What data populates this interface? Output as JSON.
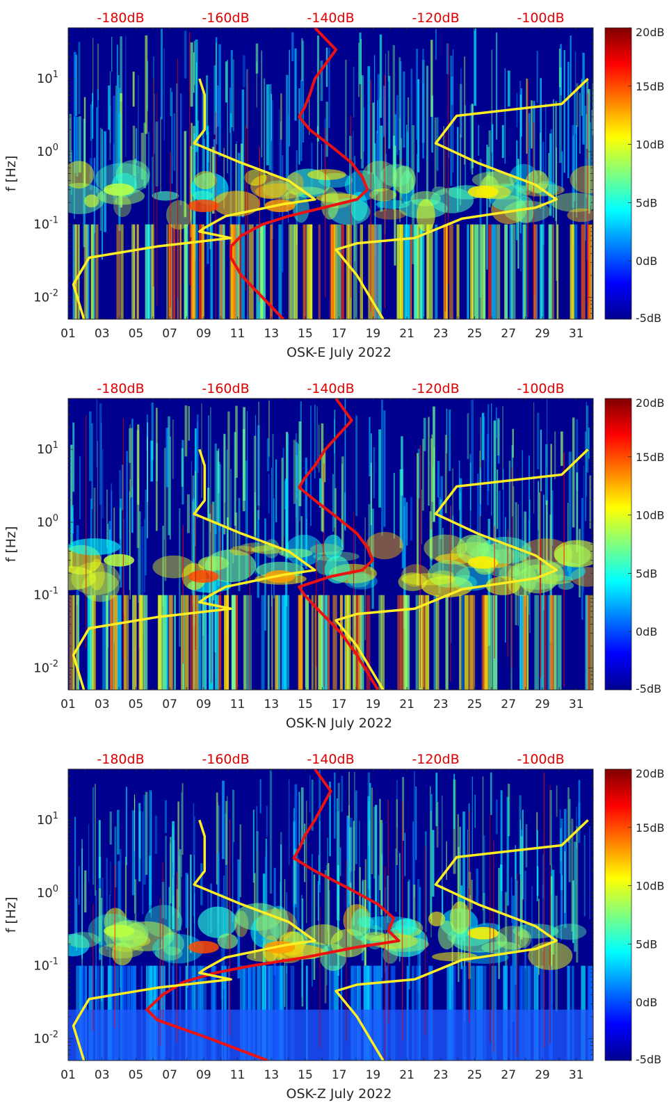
{
  "figure": {
    "ylabel": "f [Hz]",
    "y_ticks": [
      "10-2",
      "10-1",
      "100",
      "101"
    ],
    "y_tick_values": [
      0.01,
      0.1,
      1,
      10
    ],
    "x_ticks": [
      "01",
      "03",
      "05",
      "07",
      "09",
      "11",
      "13",
      "15",
      "17",
      "19",
      "21",
      "23",
      "25",
      "27",
      "29",
      "31"
    ],
    "top_ticks": [
      "-180dB",
      "-160dB",
      "-140dB",
      "-120dB",
      "-100dB"
    ],
    "colorbar_ticks": [
      "20dB",
      "15dB",
      "10dB",
      "5dB",
      "0dB",
      "-5dB"
    ],
    "colorbar_values": [
      20,
      15,
      10,
      5,
      0,
      -5
    ],
    "colors": {
      "red_curve": "#ee1111",
      "yellow_curve": "#ffee22",
      "top_labels": "#dd0000",
      "background_low": "#00008f"
    }
  },
  "chart_data": [
    {
      "type": "heatmap",
      "title": "",
      "xlabel": "OSK-E July 2022",
      "ylabel": "f [Hz]",
      "xlim_day": [
        1,
        32
      ],
      "ylim_hz": [
        0.005,
        50
      ],
      "yscale": "log",
      "clim_db": [
        -5,
        20
      ],
      "colormap": "jet",
      "top_axis": {
        "label_unit": "dB",
        "range_db": [
          -190,
          -90
        ],
        "ticks": [
          -180,
          -160,
          -140,
          -120,
          -100
        ]
      },
      "series": [
        {
          "name": "red curve (top dB axis)",
          "points": [
            [
              -143,
              50
            ],
            [
              -139,
              25
            ],
            [
              -143,
              10
            ],
            [
              -144,
              6
            ],
            [
              -145,
              4
            ],
            [
              -146,
              3
            ],
            [
              -144,
              2
            ],
            [
              -140,
              1.2
            ],
            [
              -136,
              0.7
            ],
            [
              -134,
              0.45
            ],
            [
              -133,
              0.3
            ],
            [
              -135,
              0.22
            ],
            [
              -140,
              0.18
            ],
            [
              -148,
              0.13
            ],
            [
              -153,
              0.1
            ],
            [
              -157,
              0.07
            ],
            [
              -159,
              0.05
            ],
            [
              -159,
              0.035
            ],
            [
              -157,
              0.02
            ],
            [
              -153,
              0.01
            ],
            [
              -149,
              0.005
            ]
          ]
        },
        {
          "name": "yellow curve left (top dB axis)",
          "points": [
            [
              -165,
              10
            ],
            [
              -164,
              6
            ],
            [
              -164,
              2
            ],
            [
              -166,
              1.3
            ],
            [
              -157,
              0.7
            ],
            [
              -148,
              0.4
            ],
            [
              -143,
              0.22
            ],
            [
              -149,
              0.19
            ],
            [
              -160,
              0.13
            ],
            [
              -164,
              0.09
            ],
            [
              -165,
              0.08
            ],
            [
              -159,
              0.065
            ],
            [
              -173,
              0.05
            ],
            [
              -186,
              0.035
            ],
            [
              -188,
              0.02
            ],
            [
              -189,
              0.015
            ],
            [
              -187,
              0.005
            ]
          ]
        },
        {
          "name": "yellow curve right (top dB axis)",
          "points": [
            [
              -91,
              10
            ],
            [
              -96,
              4.5
            ],
            [
              -116,
              3.1
            ],
            [
              -120,
              1.3
            ],
            [
              -112,
              0.7
            ],
            [
              -101,
              0.35
            ],
            [
              -97,
              0.22
            ],
            [
              -101,
              0.17
            ],
            [
              -115,
              0.12
            ],
            [
              -124,
              0.065
            ],
            [
              -135,
              0.055
            ],
            [
              -139,
              0.045
            ],
            [
              -135,
              0.02
            ],
            [
              -130,
              0.005
            ]
          ]
        }
      ]
    },
    {
      "type": "heatmap",
      "title": "",
      "xlabel": "OSK-N July 2022",
      "ylabel": "f [Hz]",
      "xlim_day": [
        1,
        32
      ],
      "ylim_hz": [
        0.005,
        50
      ],
      "yscale": "log",
      "clim_db": [
        -5,
        20
      ],
      "colormap": "jet",
      "top_axis": {
        "label_unit": "dB",
        "range_db": [
          -190,
          -90
        ],
        "ticks": [
          -180,
          -160,
          -140,
          -120,
          -100
        ]
      },
      "series": [
        {
          "name": "red curve (top dB axis)",
          "points": [
            [
              -139,
              50
            ],
            [
              -136,
              25
            ],
            [
              -141,
              10
            ],
            [
              -143,
              6
            ],
            [
              -145,
              4
            ],
            [
              -146,
              3
            ],
            [
              -143,
              2
            ],
            [
              -139,
              1.2
            ],
            [
              -135,
              0.7
            ],
            [
              -133,
              0.45
            ],
            [
              -132,
              0.3
            ],
            [
              -134,
              0.22
            ],
            [
              -140,
              0.18
            ],
            [
              -146,
              0.13
            ],
            [
              -145,
              0.1
            ],
            [
              -143,
              0.07
            ],
            [
              -141,
              0.05
            ],
            [
              -138,
              0.03
            ],
            [
              -135,
              0.015
            ],
            [
              -131,
              0.005
            ]
          ]
        },
        {
          "name": "yellow curve left (top dB axis)",
          "points": [
            [
              -165,
              10
            ],
            [
              -164,
              6
            ],
            [
              -164,
              2
            ],
            [
              -166,
              1.3
            ],
            [
              -157,
              0.7
            ],
            [
              -148,
              0.4
            ],
            [
              -143,
              0.22
            ],
            [
              -149,
              0.19
            ],
            [
              -160,
              0.13
            ],
            [
              -164,
              0.09
            ],
            [
              -165,
              0.08
            ],
            [
              -159,
              0.065
            ],
            [
              -173,
              0.05
            ],
            [
              -186,
              0.035
            ],
            [
              -188,
              0.02
            ],
            [
              -189,
              0.015
            ],
            [
              -187,
              0.005
            ]
          ]
        },
        {
          "name": "yellow curve right (top dB axis)",
          "points": [
            [
              -91,
              10
            ],
            [
              -96,
              4.5
            ],
            [
              -116,
              3.1
            ],
            [
              -120,
              1.3
            ],
            [
              -112,
              0.7
            ],
            [
              -101,
              0.35
            ],
            [
              -97,
              0.22
            ],
            [
              -101,
              0.17
            ],
            [
              -115,
              0.12
            ],
            [
              -124,
              0.065
            ],
            [
              -135,
              0.055
            ],
            [
              -139,
              0.045
            ],
            [
              -135,
              0.02
            ],
            [
              -130,
              0.005
            ]
          ]
        }
      ]
    },
    {
      "type": "heatmap",
      "title": "",
      "xlabel": "OSK-Z July 2022",
      "ylabel": "f [Hz]",
      "xlim_day": [
        1,
        32
      ],
      "ylim_hz": [
        0.005,
        50
      ],
      "yscale": "log",
      "clim_db": [
        -5,
        20
      ],
      "colormap": "jet",
      "top_axis": {
        "label_unit": "dB",
        "range_db": [
          -190,
          -90
        ],
        "ticks": [
          -180,
          -160,
          -140,
          -120,
          -100
        ]
      },
      "series": [
        {
          "name": "red curve (top dB axis)",
          "points": [
            [
              -143,
              50
            ],
            [
              -140,
              25
            ],
            [
              -143,
              10
            ],
            [
              -145,
              6
            ],
            [
              -146,
              4
            ],
            [
              -147,
              3
            ],
            [
              -143,
              2
            ],
            [
              -137,
              1.2
            ],
            [
              -131,
              0.7
            ],
            [
              -128,
              0.45
            ],
            [
              -129,
              0.3
            ],
            [
              -127,
              0.22
            ],
            [
              -135,
              0.18
            ],
            [
              -145,
              0.13
            ],
            [
              -155,
              0.1
            ],
            [
              -162,
              0.08
            ],
            [
              -168,
              0.06
            ],
            [
              -172,
              0.04
            ],
            [
              -175,
              0.025
            ],
            [
              -173,
              0.018
            ],
            [
              -163,
              0.01
            ],
            [
              -152,
              0.005
            ]
          ]
        },
        {
          "name": "yellow curve left (top dB axis)",
          "points": [
            [
              -165,
              10
            ],
            [
              -164,
              6
            ],
            [
              -164,
              2
            ],
            [
              -166,
              1.3
            ],
            [
              -157,
              0.7
            ],
            [
              -148,
              0.4
            ],
            [
              -143,
              0.22
            ],
            [
              -149,
              0.19
            ],
            [
              -160,
              0.13
            ],
            [
              -164,
              0.09
            ],
            [
              -165,
              0.08
            ],
            [
              -159,
              0.065
            ],
            [
              -173,
              0.05
            ],
            [
              -186,
              0.035
            ],
            [
              -188,
              0.02
            ],
            [
              -189,
              0.015
            ],
            [
              -187,
              0.005
            ]
          ]
        },
        {
          "name": "yellow curve right (top dB axis)",
          "points": [
            [
              -91,
              10
            ],
            [
              -96,
              4.5
            ],
            [
              -116,
              3.1
            ],
            [
              -120,
              1.3
            ],
            [
              -112,
              0.7
            ],
            [
              -101,
              0.35
            ],
            [
              -97,
              0.22
            ],
            [
              -101,
              0.17
            ],
            [
              -115,
              0.12
            ],
            [
              -124,
              0.065
            ],
            [
              -135,
              0.055
            ],
            [
              -139,
              0.045
            ],
            [
              -135,
              0.02
            ],
            [
              -130,
              0.005
            ]
          ]
        }
      ]
    }
  ]
}
